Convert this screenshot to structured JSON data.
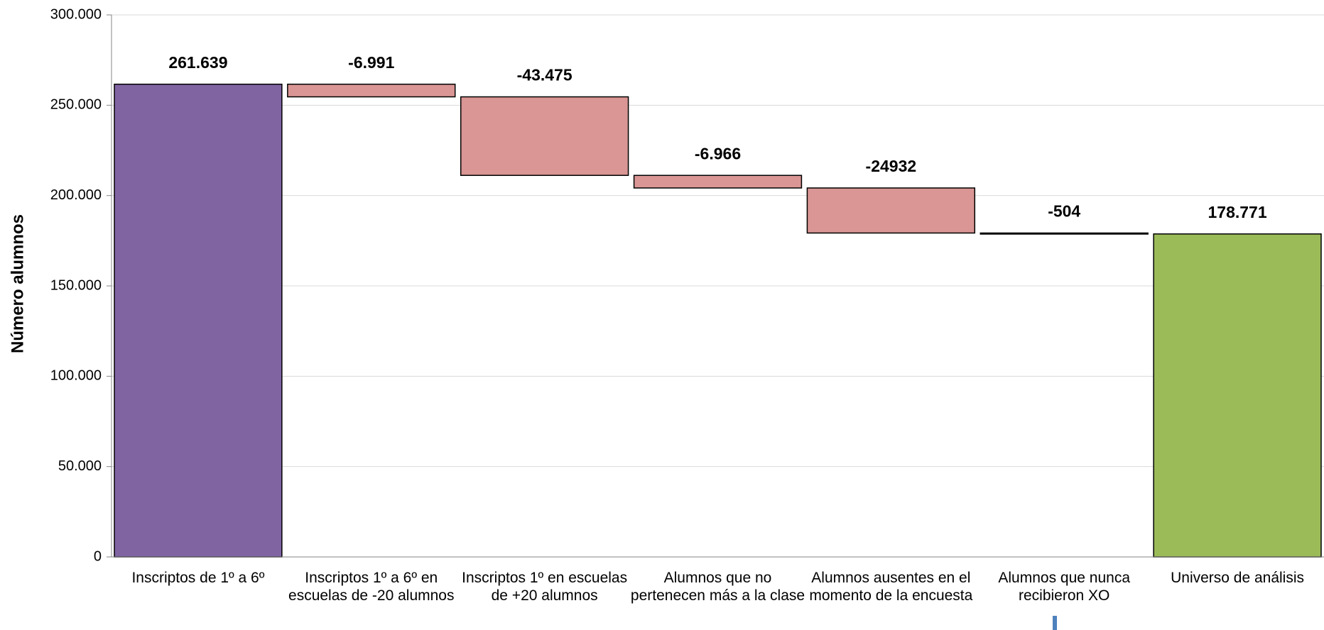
{
  "chart_data": {
    "type": "waterfall",
    "y_label": "Número alumnos",
    "categories": [
      "Inscriptos de 1º a 6º",
      "Inscriptos 1º a 6º en escuelas de -20 alumnos",
      "Inscriptos 1º en escuelas de +20 alumnos",
      "Alumnos que no pertenecen más a la clase",
      "Alumnos ausentes en el momento de la encuesta",
      "Alumnos que nunca recibieron XO",
      "Universo de análisis"
    ],
    "values": [
      261639,
      -6991,
      -43475,
      -6966,
      -24932,
      -504,
      178771
    ],
    "value_labels": [
      "261.639",
      "-6.991",
      "-43.475",
      "-6.966",
      "-24932",
      "-504",
      "178.771"
    ],
    "is_total": [
      true,
      false,
      false,
      false,
      false,
      false,
      true
    ],
    "colors": [
      "#8064a2",
      "#d99694",
      "#d99694",
      "#d99694",
      "#d99694",
      "#d99694",
      "#9bbb59"
    ],
    "ylim": [
      0,
      300000
    ],
    "yticks": [
      0,
      {
        "value": 50000,
        "label": "50.000"
      },
      {
        "value": 100000,
        "label": "100.000"
      },
      {
        "value": 150000,
        "label": "150.000"
      },
      {
        "value": 200000,
        "label": "200.000"
      },
      {
        "value": 250000,
        "label": "250.000"
      },
      {
        "value": 300000,
        "label": "300.000"
      }
    ],
    "grid": true
  }
}
